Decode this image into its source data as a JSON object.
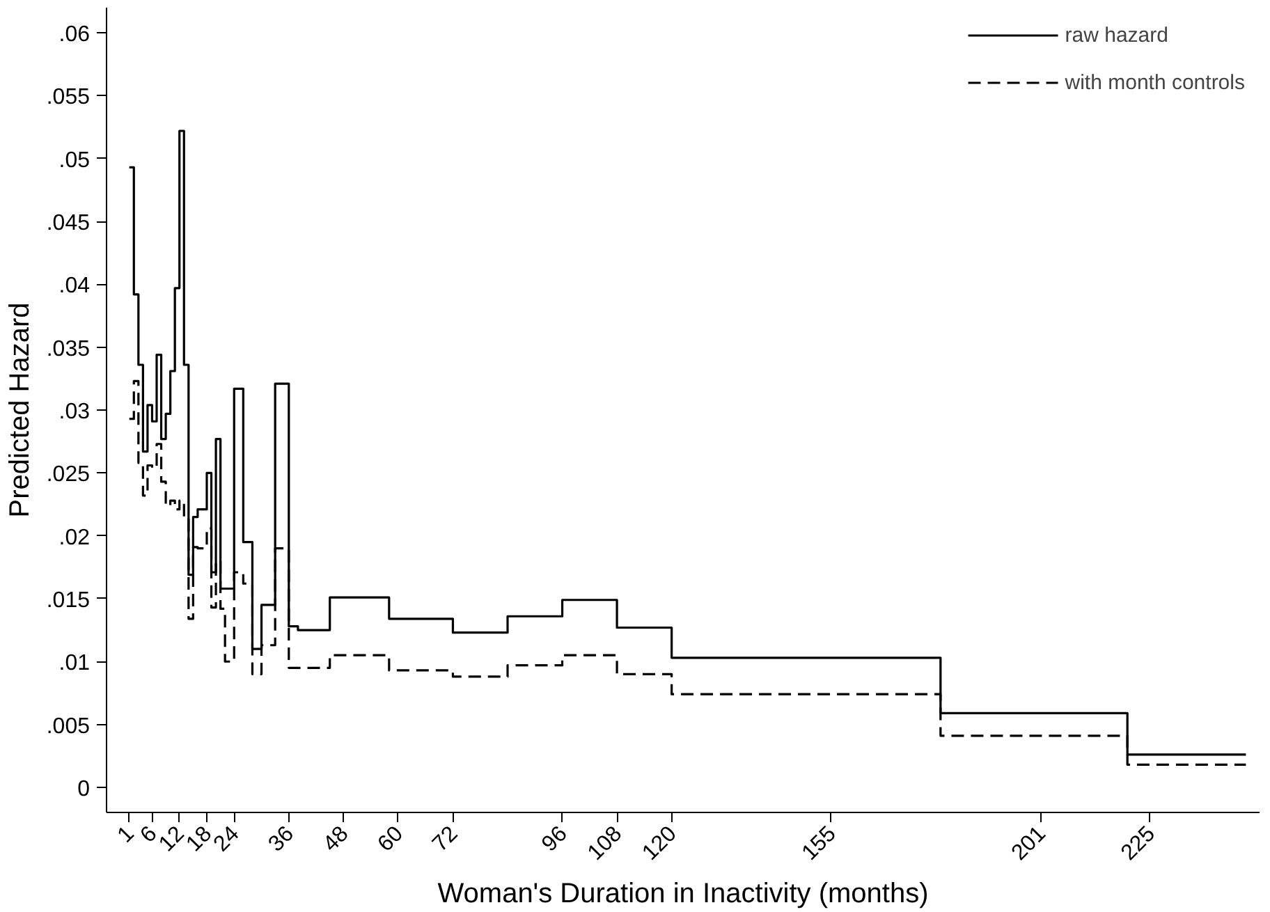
{
  "chart_data": {
    "type": "step",
    "xlabel": "Woman's Duration in Inactivity (months)",
    "ylabel": "Predicted Hazard",
    "xlim": [
      -4,
      249
    ],
    "ylim": [
      -0.002,
      0.062
    ],
    "xticks": [
      1,
      6,
      12,
      18,
      24,
      36,
      48,
      60,
      72,
      96,
      108,
      120,
      155,
      201,
      225
    ],
    "yticks": [
      {
        "value": 0,
        "label": "0"
      },
      {
        "value": 0.005,
        "label": ".005"
      },
      {
        "value": 0.01,
        "label": ".01"
      },
      {
        "value": 0.015,
        "label": ".015"
      },
      {
        "value": 0.02,
        "label": ".02"
      },
      {
        "value": 0.025,
        "label": ".025"
      },
      {
        "value": 0.03,
        "label": ".03"
      },
      {
        "value": 0.035,
        "label": ".035"
      },
      {
        "value": 0.04,
        "label": ".04"
      },
      {
        "value": 0.045,
        "label": ".045"
      },
      {
        "value": 0.05,
        "label": ".05"
      },
      {
        "value": 0.055,
        "label": ".055"
      },
      {
        "value": 0.06,
        "label": ".06"
      }
    ],
    "grid": false,
    "legend": "top right",
    "series": [
      {
        "name": "raw hazard",
        "color": "#000000",
        "line_style": "solid",
        "x": [
          1,
          2,
          3,
          4,
          5,
          6,
          7,
          8,
          9,
          10,
          11,
          12,
          13,
          14,
          15,
          16,
          18,
          19,
          20,
          21,
          24,
          26,
          28,
          30,
          33,
          36,
          38,
          45,
          58,
          72,
          84,
          96,
          108,
          120,
          179,
          220,
          246
        ],
        "values": [
          0.0493,
          0.0392,
          0.0336,
          0.0267,
          0.0304,
          0.0291,
          0.0344,
          0.0277,
          0.0297,
          0.0331,
          0.0397,
          0.0522,
          0.0336,
          0.0169,
          0.0215,
          0.0221,
          0.025,
          0.0171,
          0.0277,
          0.0158,
          0.0317,
          0.0195,
          0.011,
          0.0145,
          0.0321,
          0.0128,
          0.0125,
          0.0151,
          0.0134,
          0.0123,
          0.0136,
          0.0149,
          0.0127,
          0.0103,
          0.0059,
          0.0026,
          0.0026
        ]
      },
      {
        "name": "with month controls",
        "color": "#000000",
        "line_style": "dashed",
        "x": [
          1,
          2,
          3,
          4,
          5,
          6,
          7,
          8,
          9,
          10,
          11,
          12,
          13,
          14,
          15,
          16,
          18,
          19,
          20,
          21,
          22,
          24,
          26,
          28,
          30,
          33,
          36,
          45,
          58,
          72,
          84,
          96,
          108,
          120,
          179,
          220,
          246
        ],
        "values": [
          0.0293,
          0.0323,
          0.0258,
          0.0232,
          0.0256,
          0.0254,
          0.0273,
          0.0243,
          0.0224,
          0.0228,
          0.0221,
          0.0228,
          0.0215,
          0.0134,
          0.0191,
          0.019,
          0.0206,
          0.0143,
          0.018,
          0.0142,
          0.01,
          0.0171,
          0.0162,
          0.009,
          0.0113,
          0.019,
          0.0095,
          0.0105,
          0.0093,
          0.0088,
          0.0097,
          0.0105,
          0.009,
          0.0074,
          0.0041,
          0.0018,
          0.0018
        ]
      }
    ]
  }
}
